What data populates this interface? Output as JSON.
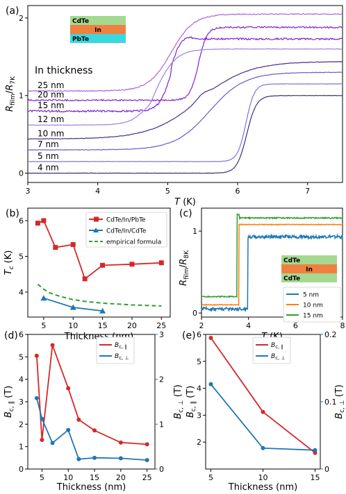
{
  "chart_data": [
    {
      "panel": "(a)",
      "type": "line",
      "xlabel": "T (K)",
      "ylabel": "R_film/R_7K",
      "xlim": [
        3,
        7.5
      ],
      "ylim": [
        -0.12,
        2.16
      ],
      "xticks": [
        "3",
        "4",
        "5",
        "6",
        "7"
      ],
      "yticks": [
        "0",
        "1",
        "2"
      ],
      "legend_title": "In thickness",
      "inset_layers": [
        "CdTe",
        "In",
        "PbTe"
      ],
      "series": [
        {
          "name": "25 nm",
          "color": "#a866e0",
          "base": 1.06,
          "top": 2.05,
          "tc": 5.05,
          "width": 0.16,
          "noise": 0.006
        },
        {
          "name": "20 nm",
          "color": "#8a1fcf",
          "base": 0.94,
          "top": 1.88,
          "tc": 5.44,
          "width": 0.06,
          "noise": 0.01
        },
        {
          "name": "15 nm",
          "color": "#7e22c6",
          "base": 0.8,
          "top": 1.73,
          "tc": 5.05,
          "width": 0.08,
          "noise": 0.012
        },
        {
          "name": "12 nm",
          "color": "#9b7fe4",
          "base": 0.62,
          "top": 1.6,
          "tc": 4.85,
          "width": 0.14,
          "noise": 0.003
        },
        {
          "name": "10 nm",
          "color": "#4b2b8e",
          "base": 0.44,
          "top": 1.44,
          "tc": 5.45,
          "width": 0.35,
          "noise": 0.003
        },
        {
          "name": "7 nm",
          "color": "#6e59c8",
          "base": 0.3,
          "top": 1.3,
          "tc": 5.6,
          "width": 0.25,
          "noise": 0.003
        },
        {
          "name": "5 nm",
          "color": "#7b72dc",
          "base": 0.15,
          "top": 1.15,
          "tc": 6.12,
          "width": 0.06,
          "noise": 0.002
        },
        {
          "name": "4 nm",
          "color": "#3a2f7a",
          "base": 0.0,
          "top": 1.0,
          "tc": 6.13,
          "width": 0.07,
          "noise": 0.002
        }
      ]
    },
    {
      "panel": "(b)",
      "type": "line",
      "xlabel": "Thickness (nm)",
      "ylabel": "T_c (K)",
      "xlim": [
        2.3,
        26.5
      ],
      "ylim": [
        3.3,
        6.35
      ],
      "xticks": [
        "5",
        "10",
        "15",
        "20",
        "25"
      ],
      "yticks": [
        "4",
        "5",
        "6"
      ],
      "series": [
        {
          "name": "CdTe/In/PbTe",
          "color": "#d62728",
          "marker": "square",
          "x": [
            4,
            5,
            7,
            10,
            12,
            15,
            20,
            25
          ],
          "y": [
            5.93,
            6.0,
            5.25,
            5.33,
            4.37,
            4.75,
            4.78,
            4.82
          ]
        },
        {
          "name": "CdTe/In/CdTe",
          "color": "#1f77b4",
          "marker": "triangle",
          "x": [
            5,
            10,
            15
          ],
          "y": [
            3.83,
            3.57,
            3.47
          ]
        },
        {
          "name": "empirical formula",
          "color": "#2ca02c",
          "dashed": true,
          "x": [
            4,
            5,
            6,
            7,
            8,
            10,
            12,
            15,
            20,
            25
          ],
          "y": [
            4.22,
            4.08,
            3.98,
            3.92,
            3.87,
            3.79,
            3.74,
            3.69,
            3.64,
            3.61
          ]
        }
      ]
    },
    {
      "panel": "(c)",
      "type": "line",
      "xlabel": "T (K)",
      "ylabel": "R_film/R_8K",
      "xlim": [
        2,
        8
      ],
      "ylim": [
        -0.05,
        1.28
      ],
      "xticks": [
        "2",
        "4",
        "6",
        "8"
      ],
      "yticks": [
        "0",
        "1"
      ],
      "inset_layers": [
        "CdTe",
        "In",
        "CdTe"
      ],
      "series": [
        {
          "name": "5 nm",
          "color": "#1f77b4",
          "base": 0.05,
          "top": 0.93,
          "tc": 3.97,
          "noise": 0.02
        },
        {
          "name": "10 nm",
          "color": "#ff7f0e",
          "base": 0.1,
          "top": 1.08,
          "tc": 3.6,
          "noise": 0.004
        },
        {
          "name": "15 nm",
          "color": "#2ca02c",
          "base": 0.2,
          "top": 1.16,
          "tc": 3.52,
          "noise": 0.007
        }
      ]
    },
    {
      "panel": "(d)",
      "type": "line",
      "xlabel": "Thickness (nm)",
      "ylabel": "B_c,∥ (T)",
      "ylabel_right": "B_c,⊥ (T)",
      "xlim": [
        2.3,
        26.5
      ],
      "ylim": [
        0,
        6
      ],
      "ylim_right": [
        0,
        3
      ],
      "xticks": [
        "5",
        "10",
        "15",
        "20",
        "25"
      ],
      "yticks": [
        "0",
        "1",
        "2",
        "3",
        "4",
        "5",
        "6"
      ],
      "yticks_right": [
        "0",
        "1",
        "2",
        "3"
      ],
      "series": [
        {
          "name": "B_c,∥",
          "color": "#d62728",
          "axis": "left",
          "x": [
            4,
            5,
            7,
            10,
            12,
            15,
            20,
            25
          ],
          "y": [
            5.05,
            1.3,
            5.52,
            3.6,
            2.2,
            1.72,
            1.18,
            1.1
          ]
        },
        {
          "name": "B_c,⊥",
          "color": "#1f77b4",
          "axis": "right",
          "x": [
            4,
            5,
            7,
            10,
            12,
            15,
            20,
            25
          ],
          "y": [
            1.58,
            1.12,
            0.58,
            0.87,
            0.22,
            0.25,
            0.24,
            0.2
          ]
        }
      ]
    },
    {
      "panel": "(e)",
      "type": "line",
      "xlabel": "Thickness (nm)",
      "ylabel": "B_c,∥ (T)",
      "ylabel_right": "B_c,⊥ (T)",
      "xlim": [
        4.5,
        15.5
      ],
      "ylim": [
        1,
        6
      ],
      "ylim_right": [
        0,
        0.2
      ],
      "xticks": [
        "5",
        "10",
        "15"
      ],
      "yticks": [
        "2",
        "3",
        "4",
        "5",
        "6"
      ],
      "yticks_right": [
        "0",
        "0.1",
        "0.2"
      ],
      "series": [
        {
          "name": "B_c,∥",
          "color": "#d62728",
          "axis": "left",
          "x": [
            5,
            10,
            15
          ],
          "y": [
            5.87,
            3.12,
            1.6
          ]
        },
        {
          "name": "B_c,⊥",
          "color": "#1f77b4",
          "axis": "right",
          "x": [
            5,
            10,
            15
          ],
          "y": [
            0.126,
            0.031,
            0.028
          ]
        }
      ]
    }
  ]
}
